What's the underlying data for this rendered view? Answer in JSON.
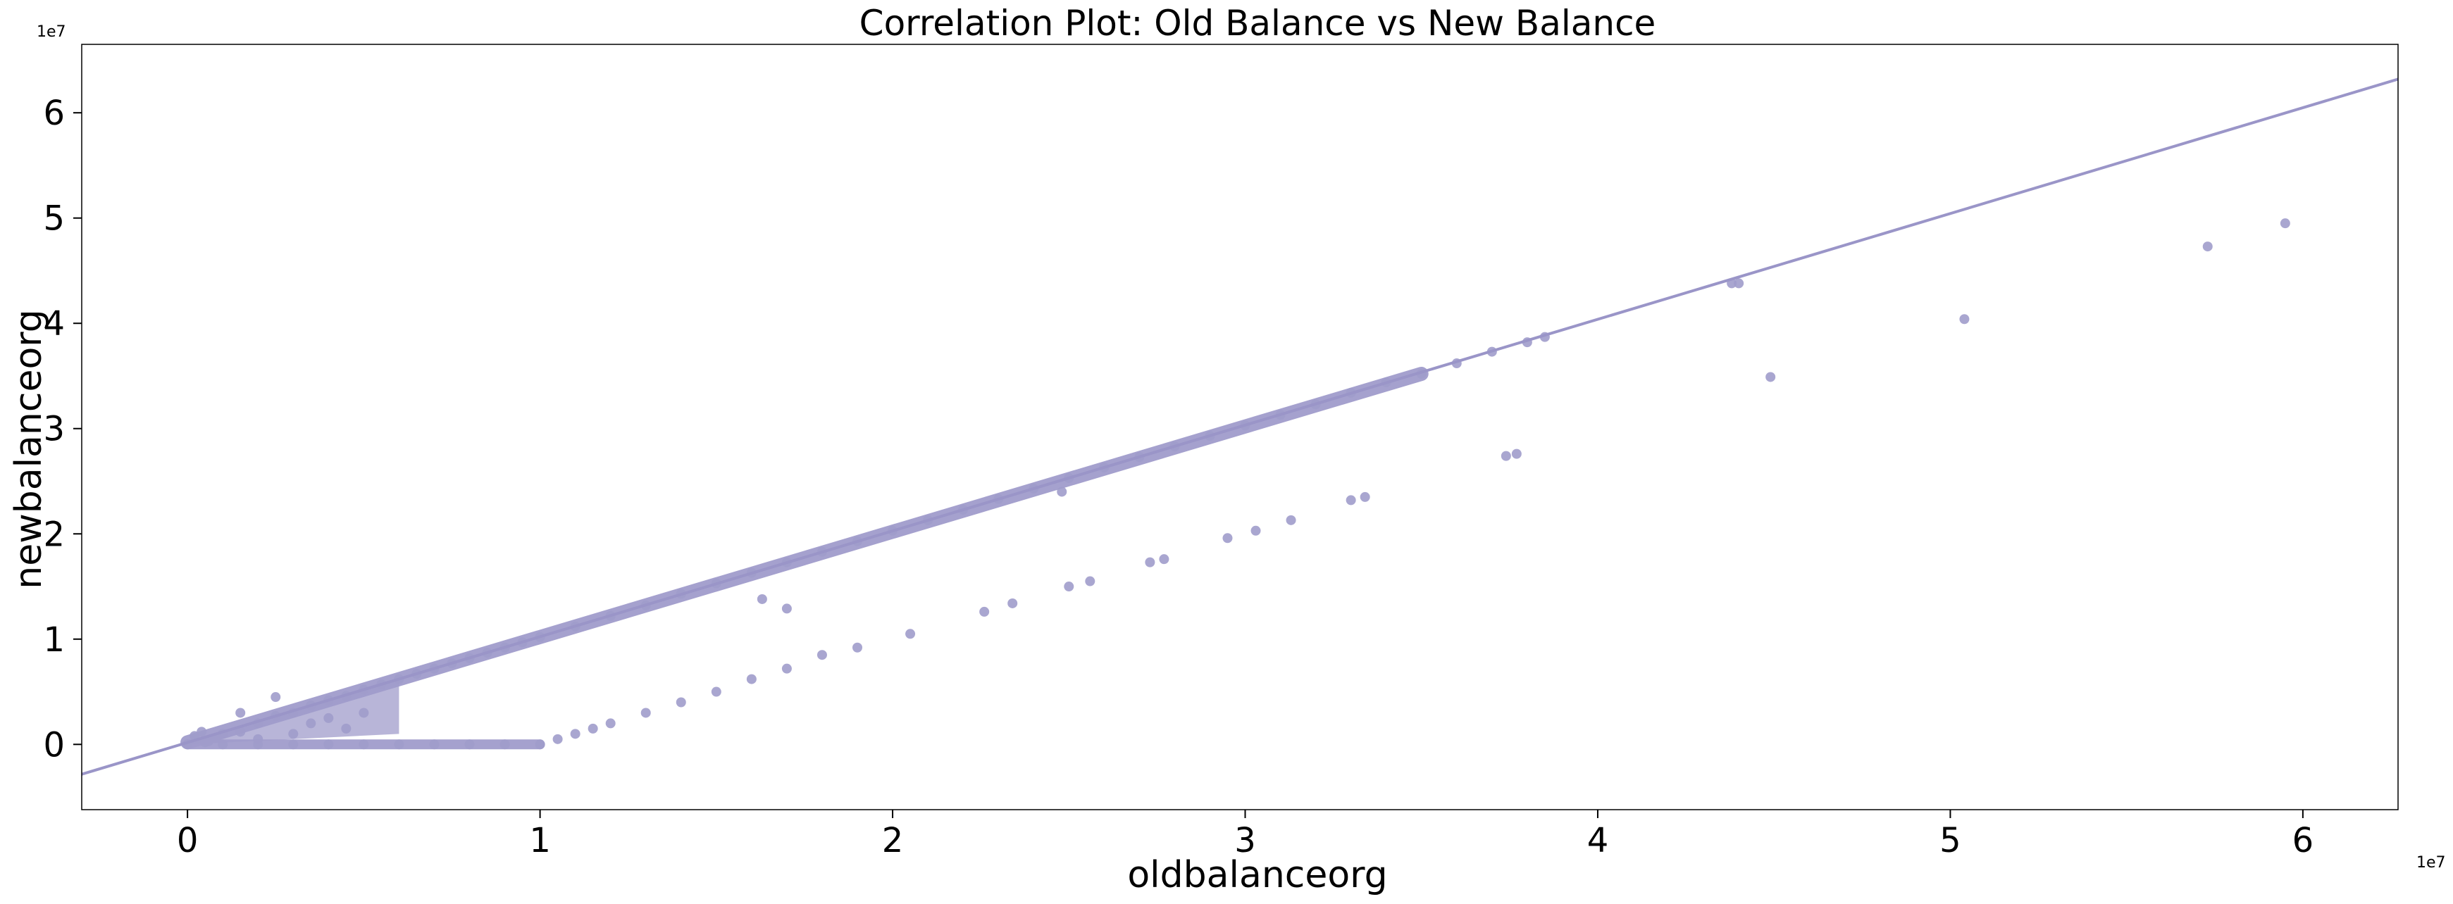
{
  "chart_data": {
    "type": "scatter",
    "title": "Correlation Plot: Old Balance vs New Balance",
    "xlabel": "oldbalanceorg",
    "ylabel": "newbalanceorg",
    "x_offset_label": "1e7",
    "y_offset_label": "1e7",
    "xlim": [
      -0.3,
      6.27
    ],
    "ylim": [
      -0.62,
      6.65
    ],
    "x_ticks": [
      0,
      1,
      2,
      3,
      4,
      5,
      6
    ],
    "y_ticks": [
      0,
      1,
      2,
      3,
      4,
      5,
      6
    ],
    "x_tick_labels": [
      "0",
      "1",
      "2",
      "3",
      "4",
      "5",
      "6"
    ],
    "y_tick_labels": [
      "0",
      "1",
      "2",
      "3",
      "4",
      "5",
      "6"
    ],
    "grid": false,
    "colors": {
      "points": "#a09ccb",
      "line": "#9a95c8",
      "axes": "#000000"
    },
    "regression_line": {
      "intercept": 0.018,
      "slope": 1.005
    },
    "series": [
      {
        "points": [
          [
            0.0,
            0.0
          ],
          [
            0.05,
            0.02
          ],
          [
            0.08,
            0.06
          ],
          [
            0.1,
            0.1
          ],
          [
            0.15,
            0.12
          ],
          [
            0.2,
            0.2
          ],
          [
            0.25,
            0.27
          ],
          [
            0.3,
            0.3
          ],
          [
            0.35,
            0.37
          ],
          [
            0.4,
            0.42
          ],
          [
            0.45,
            0.46
          ],
          [
            0.5,
            0.52
          ],
          [
            0.55,
            0.57
          ],
          [
            0.6,
            0.62
          ],
          [
            0.65,
            0.67
          ],
          [
            0.7,
            0.72
          ],
          [
            0.75,
            0.77
          ],
          [
            0.8,
            0.82
          ],
          [
            0.85,
            0.87
          ],
          [
            0.9,
            0.92
          ],
          [
            0.95,
            0.97
          ],
          [
            1.0,
            1.02
          ],
          [
            1.1,
            1.12
          ],
          [
            1.2,
            1.22
          ],
          [
            1.3,
            1.32
          ],
          [
            1.4,
            1.43
          ],
          [
            1.5,
            1.53
          ],
          [
            1.6,
            1.63
          ],
          [
            1.7,
            1.73
          ],
          [
            1.8,
            1.83
          ],
          [
            1.9,
            1.93
          ],
          [
            2.0,
            2.03
          ],
          [
            2.1,
            2.13
          ],
          [
            2.2,
            2.23
          ],
          [
            2.3,
            2.33
          ],
          [
            2.4,
            2.43
          ],
          [
            2.5,
            2.53
          ],
          [
            2.6,
            2.63
          ],
          [
            2.7,
            2.73
          ],
          [
            2.8,
            2.83
          ],
          [
            2.9,
            2.93
          ],
          [
            3.0,
            3.03
          ],
          [
            3.1,
            3.13
          ],
          [
            3.2,
            3.23
          ],
          [
            3.3,
            3.34
          ],
          [
            3.4,
            3.44
          ],
          [
            3.5,
            3.52
          ],
          [
            3.6,
            3.62
          ],
          [
            3.7,
            3.73
          ],
          [
            3.8,
            3.82
          ],
          [
            3.85,
            3.87
          ],
          [
            4.38,
            4.38
          ],
          [
            4.4,
            4.38
          ],
          [
            0.15,
            0.3
          ],
          [
            0.25,
            0.45
          ],
          [
            0.3,
            0.1
          ],
          [
            0.35,
            0.2
          ],
          [
            0.4,
            0.25
          ],
          [
            0.45,
            0.15
          ],
          [
            0.5,
            0.3
          ],
          [
            0.2,
            0.05
          ],
          [
            0.02,
            0.08
          ],
          [
            0.04,
            0.12
          ],
          [
            0.06,
            0.03
          ],
          [
            0.1,
            0.0
          ],
          [
            0.2,
            0.0
          ],
          [
            0.3,
            0.0
          ],
          [
            0.4,
            0.0
          ],
          [
            0.5,
            0.0
          ],
          [
            0.6,
            0.0
          ],
          [
            0.7,
            0.0
          ],
          [
            0.8,
            0.0
          ],
          [
            0.9,
            0.0
          ],
          [
            1.0,
            0.0
          ],
          [
            1.05,
            0.05
          ],
          [
            1.1,
            0.1
          ],
          [
            1.15,
            0.15
          ],
          [
            1.2,
            0.2
          ],
          [
            1.3,
            0.3
          ],
          [
            1.4,
            0.4
          ],
          [
            1.5,
            0.5
          ],
          [
            1.6,
            0.62
          ],
          [
            1.7,
            0.72
          ],
          [
            1.8,
            0.85
          ],
          [
            1.9,
            0.92
          ],
          [
            2.05,
            1.05
          ],
          [
            2.26,
            1.26
          ],
          [
            2.34,
            1.34
          ],
          [
            2.5,
            1.5
          ],
          [
            2.56,
            1.55
          ],
          [
            2.73,
            1.73
          ],
          [
            2.77,
            1.76
          ],
          [
            2.95,
            1.96
          ],
          [
            3.03,
            2.03
          ],
          [
            3.13,
            2.13
          ],
          [
            3.3,
            2.32
          ],
          [
            3.34,
            2.35
          ],
          [
            3.74,
            2.74
          ],
          [
            3.77,
            2.76
          ],
          [
            4.49,
            3.49
          ],
          [
            5.04,
            4.04
          ],
          [
            5.73,
            4.73
          ],
          [
            5.95,
            4.95
          ],
          [
            1.63,
            1.38
          ],
          [
            1.7,
            1.29
          ],
          [
            2.48,
            2.4
          ]
        ]
      }
    ]
  }
}
